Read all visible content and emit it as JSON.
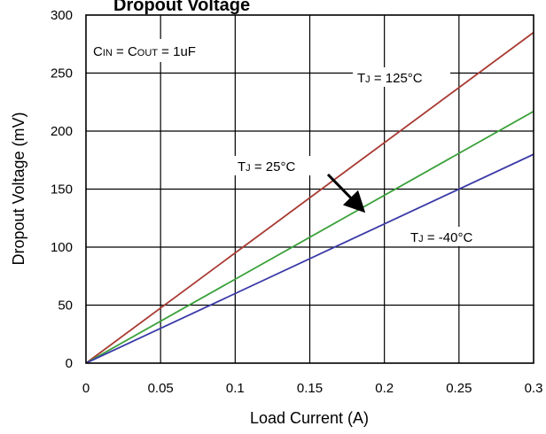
{
  "chart_data": {
    "type": "line",
    "title": "Dropout Voltage",
    "xlabel": "Load Current (A)",
    "ylabel": "Dropout Voltage  (mV)",
    "xlim": [
      0,
      0.3
    ],
    "ylim": [
      0,
      300
    ],
    "xticks": [
      0,
      0.05,
      0.1,
      0.15,
      0.2,
      0.25,
      0.3
    ],
    "xtick_labels": [
      "0",
      "0.05",
      "0.1",
      "0.15",
      "0.2",
      "0.25",
      "0.3"
    ],
    "yticks": [
      0,
      50,
      100,
      150,
      200,
      250,
      300
    ],
    "ytick_labels": [
      "0",
      "50",
      "100",
      "150",
      "200",
      "250",
      "300"
    ],
    "grid": true,
    "series": [
      {
        "name": "TJ = 125°C",
        "color": "#a83a32",
        "x": [
          0,
          0.3
        ],
        "y": [
          0,
          285
        ]
      },
      {
        "name": "TJ = 25°C",
        "color": "#3aa13a",
        "x": [
          0,
          0.3
        ],
        "y": [
          0,
          217
        ]
      },
      {
        "name": "TJ = -40°C",
        "color": "#3a3aa8",
        "x": [
          0,
          0.3
        ],
        "y": [
          0,
          180
        ]
      }
    ],
    "annotations": {
      "condition": {
        "main": "C",
        "sub1": "IN",
        "mid": " = C",
        "sub2": "OUT",
        "tail": " = 1uF"
      },
      "t125": {
        "main": "T",
        "sub": "J",
        "tail": " = 125°C"
      },
      "t25": {
        "main": "T",
        "sub": "J",
        "tail": " = 25°C"
      },
      "tm40": {
        "main": "T",
        "sub": "J",
        "tail": " = -40°C"
      }
    }
  }
}
